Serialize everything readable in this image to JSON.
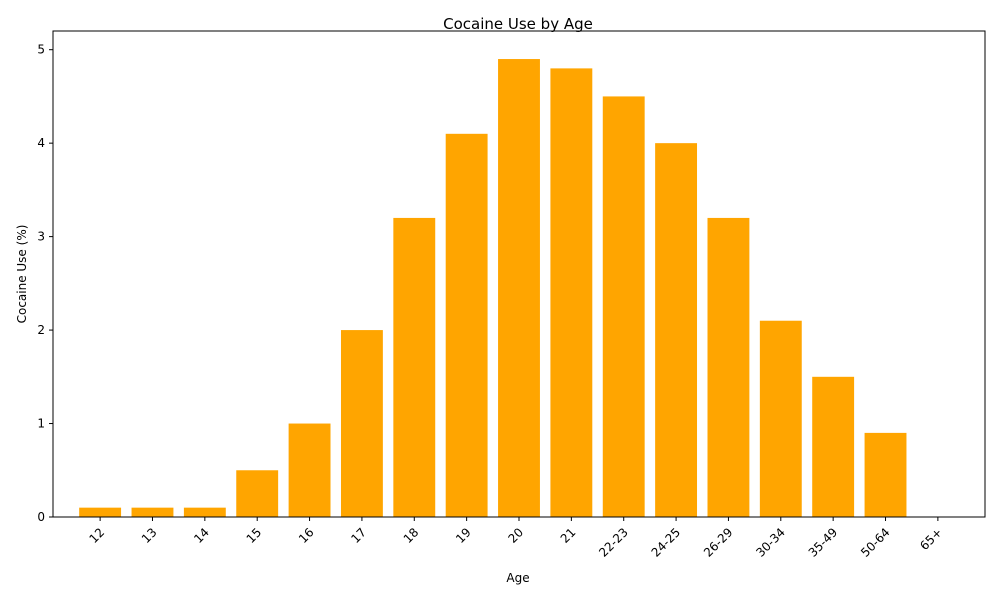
{
  "chart_data": {
    "type": "bar",
    "title": "Cocaine Use by Age",
    "xlabel": "Age",
    "ylabel": "Cocaine Use (%)",
    "categories": [
      "12",
      "13",
      "14",
      "15",
      "16",
      "17",
      "18",
      "19",
      "20",
      "21",
      "22-23",
      "24-25",
      "26-29",
      "30-34",
      "35-49",
      "50-64",
      "65+"
    ],
    "values": [
      0.1,
      0.1,
      0.1,
      0.5,
      1.0,
      2.0,
      3.2,
      4.1,
      4.9,
      4.8,
      4.5,
      4.0,
      3.2,
      2.1,
      1.5,
      0.9,
      0.0
    ],
    "ylim": [
      0,
      5.2
    ],
    "yticks": [
      0,
      1,
      2,
      3,
      4,
      5
    ],
    "grid": false,
    "legend": "none",
    "bar_color": "#FFA500"
  }
}
